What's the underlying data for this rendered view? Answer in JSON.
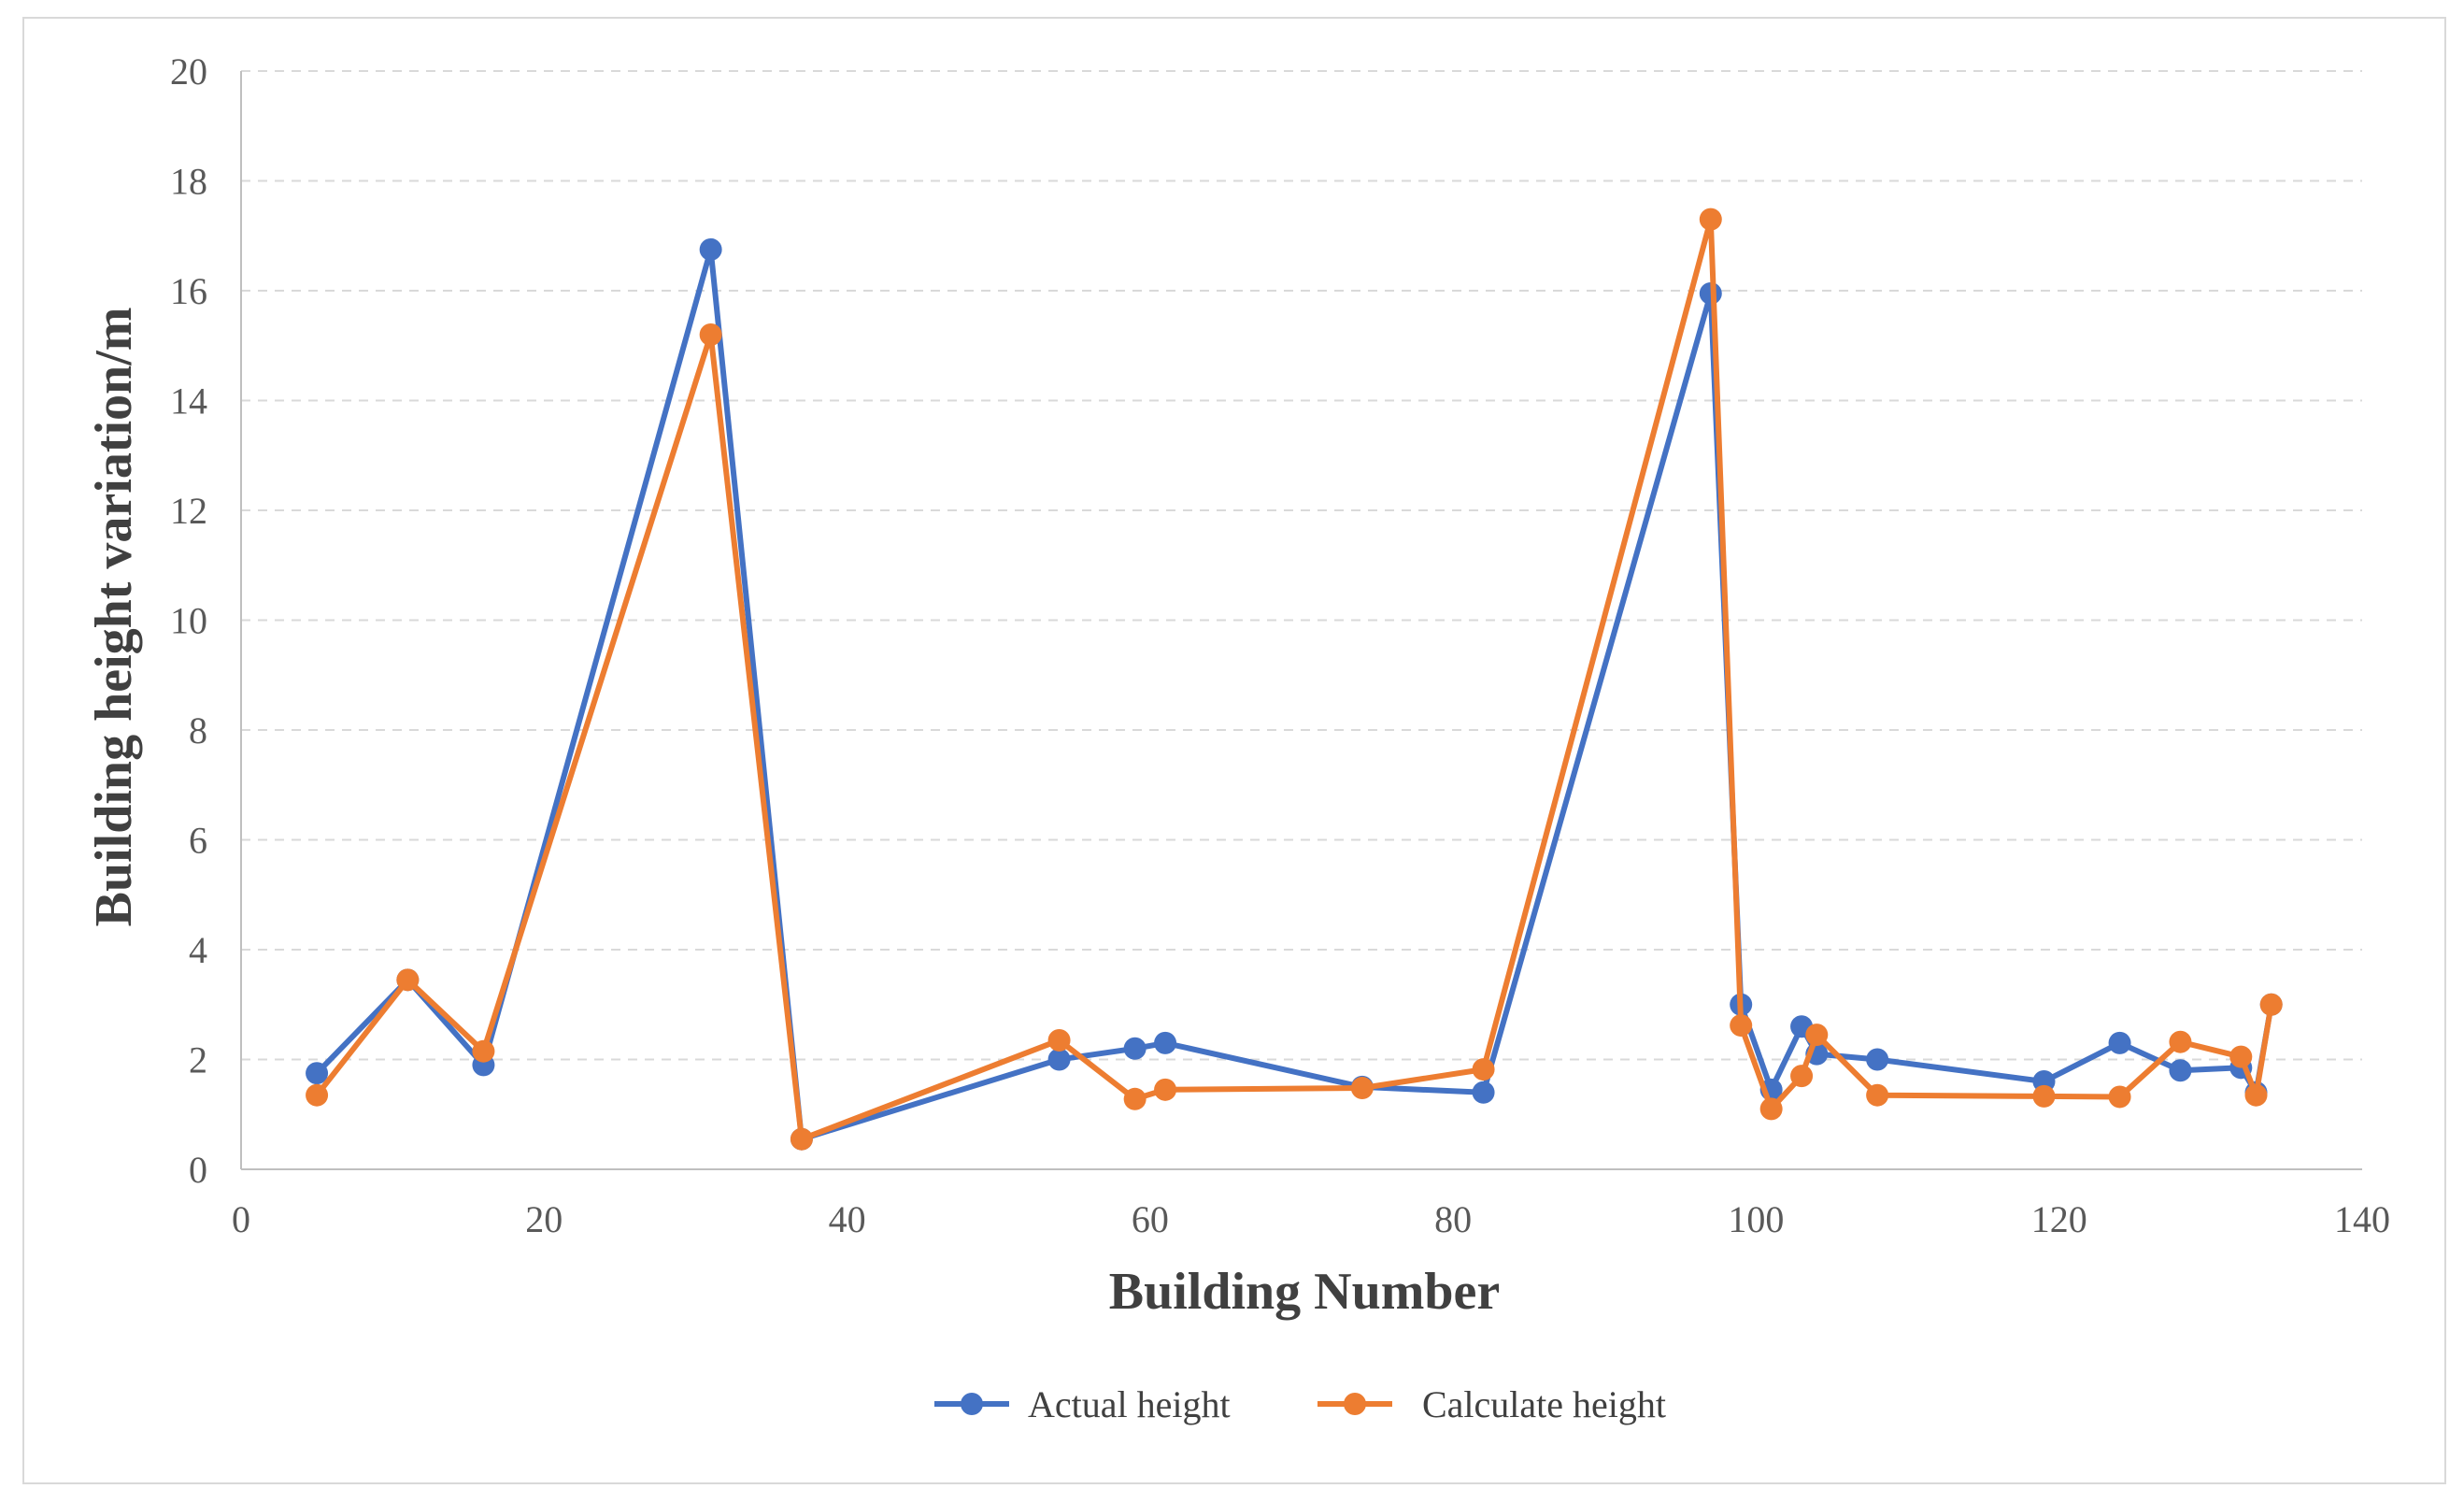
{
  "chart_data": {
    "type": "line",
    "title": "",
    "xlabel": "Building Number",
    "ylabel": "Building height variation/m",
    "xlim": [
      0,
      140
    ],
    "ylim": [
      0,
      20
    ],
    "xticks": [
      0,
      20,
      40,
      60,
      80,
      100,
      120,
      140
    ],
    "yticks": [
      0,
      2,
      4,
      6,
      8,
      10,
      12,
      14,
      16,
      18,
      20
    ],
    "grid": "horizontal dashed",
    "legend_position": "bottom-center",
    "series": [
      {
        "name": "Actual height",
        "color": "#4472C4",
        "x": [
          5,
          11,
          16,
          31,
          37,
          54,
          59,
          61,
          74,
          82,
          97,
          99,
          101,
          103,
          104,
          108,
          119,
          124,
          128,
          132,
          133,
          134
        ],
        "y": [
          1.75,
          3.45,
          1.9,
          16.75,
          0.55,
          2.0,
          2.2,
          2.3,
          1.5,
          1.4,
          15.95,
          3.0,
          1.45,
          2.6,
          2.1,
          2.0,
          1.6,
          2.3,
          1.8,
          1.85,
          1.4,
          3.0
        ]
      },
      {
        "name": "Calculate height",
        "color": "#ED7D31",
        "x": [
          5,
          11,
          16,
          31,
          37,
          54,
          59,
          61,
          74,
          82,
          97,
          99,
          101,
          103,
          104,
          108,
          119,
          124,
          128,
          132,
          133,
          134
        ],
        "y": [
          1.35,
          3.45,
          2.15,
          15.2,
          0.55,
          2.35,
          1.28,
          1.45,
          1.48,
          1.82,
          17.3,
          2.62,
          1.1,
          1.7,
          2.45,
          1.35,
          1.33,
          1.32,
          2.32,
          2.05,
          1.35,
          3.0
        ]
      }
    ]
  }
}
